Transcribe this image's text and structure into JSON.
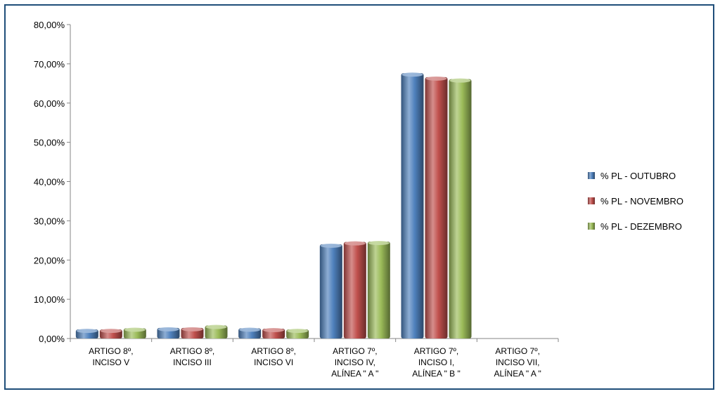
{
  "chart_data": {
    "type": "bar",
    "title": "",
    "xlabel": "",
    "ylabel": "",
    "ylim": [
      0,
      80
    ],
    "yticks": [
      "0,00%",
      "10,00%",
      "20,00%",
      "30,00%",
      "40,00%",
      "50,00%",
      "60,00%",
      "70,00%",
      "80,00%"
    ],
    "grid": false,
    "legend_position": "right",
    "categories": [
      [
        "ARTIGO 8º,",
        "INCISO V"
      ],
      [
        "ARTIGO 8º,",
        "INCISO III"
      ],
      [
        "ARTIGO 8º,",
        "INCISO VI"
      ],
      [
        "ARTIGO 7º,",
        "INCISO IV,",
        "ALÍNEA \" A \""
      ],
      [
        "ARTIGO 7º,",
        "INCISO I,",
        "ALÍNEA \" B \""
      ],
      [
        "ARTIGO 7º,",
        "INCISO VII,",
        "ALÍNEA \" A \""
      ]
    ],
    "series": [
      {
        "name": "% PL - OUTUBRO",
        "color": "#4f81bd",
        "values": [
          2.3,
          2.7,
          2.6,
          24.0,
          67.6,
          0
        ]
      },
      {
        "name": "% PL - NOVEMBRO",
        "color": "#c0504d",
        "values": [
          2.3,
          2.7,
          2.5,
          24.6,
          66.6,
          0
        ]
      },
      {
        "name": "% PL - DEZEMBRO",
        "color": "#9bbb59",
        "values": [
          2.6,
          3.3,
          2.3,
          24.7,
          66.1,
          0
        ]
      }
    ]
  }
}
